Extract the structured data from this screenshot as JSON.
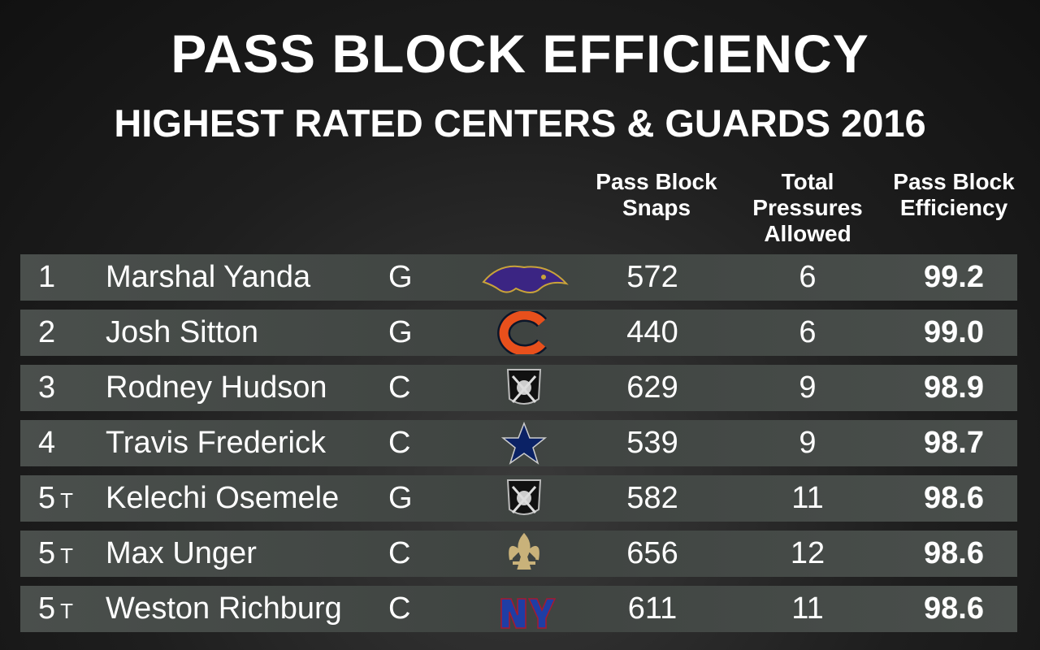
{
  "header": {
    "title": "PASS BLOCK EFFICIENCY",
    "subtitle": "HIGHEST RATED CENTERS & GUARDS 2016"
  },
  "table": {
    "columns": [
      "Pass Block Snaps",
      "Total Pressures Allowed",
      "Pass Block Efficiency"
    ],
    "rows": [
      {
        "rank": "1",
        "tie": null,
        "name": "Marshal Yanda",
        "position": "G",
        "snaps": 572,
        "pressures": 6,
        "efficiency": "99.2"
      },
      {
        "rank": "2",
        "tie": null,
        "name": "Josh Sitton",
        "position": "G",
        "snaps": 440,
        "pressures": 6,
        "efficiency": "99.0"
      },
      {
        "rank": "3",
        "tie": null,
        "name": "Rodney Hudson",
        "position": "C",
        "snaps": 629,
        "pressures": 9,
        "efficiency": "98.9"
      },
      {
        "rank": "4",
        "tie": null,
        "name": "Travis Frederick",
        "position": "C",
        "snaps": 539,
        "pressures": 9,
        "efficiency": "98.7"
      },
      {
        "rank": "5",
        "tie": "T",
        "name": "Kelechi Osemele",
        "position": "G",
        "snaps": 582,
        "pressures": 11,
        "efficiency": "98.6"
      },
      {
        "rank": "5",
        "tie": "T",
        "name": "Max Unger",
        "position": "C",
        "snaps": 656,
        "pressures": 12,
        "efficiency": "98.6"
      },
      {
        "rank": "5",
        "tie": "T",
        "name": "Weston Richburg",
        "position": "C",
        "snaps": 611,
        "pressures": 11,
        "efficiency": "98.6"
      }
    ]
  }
}
